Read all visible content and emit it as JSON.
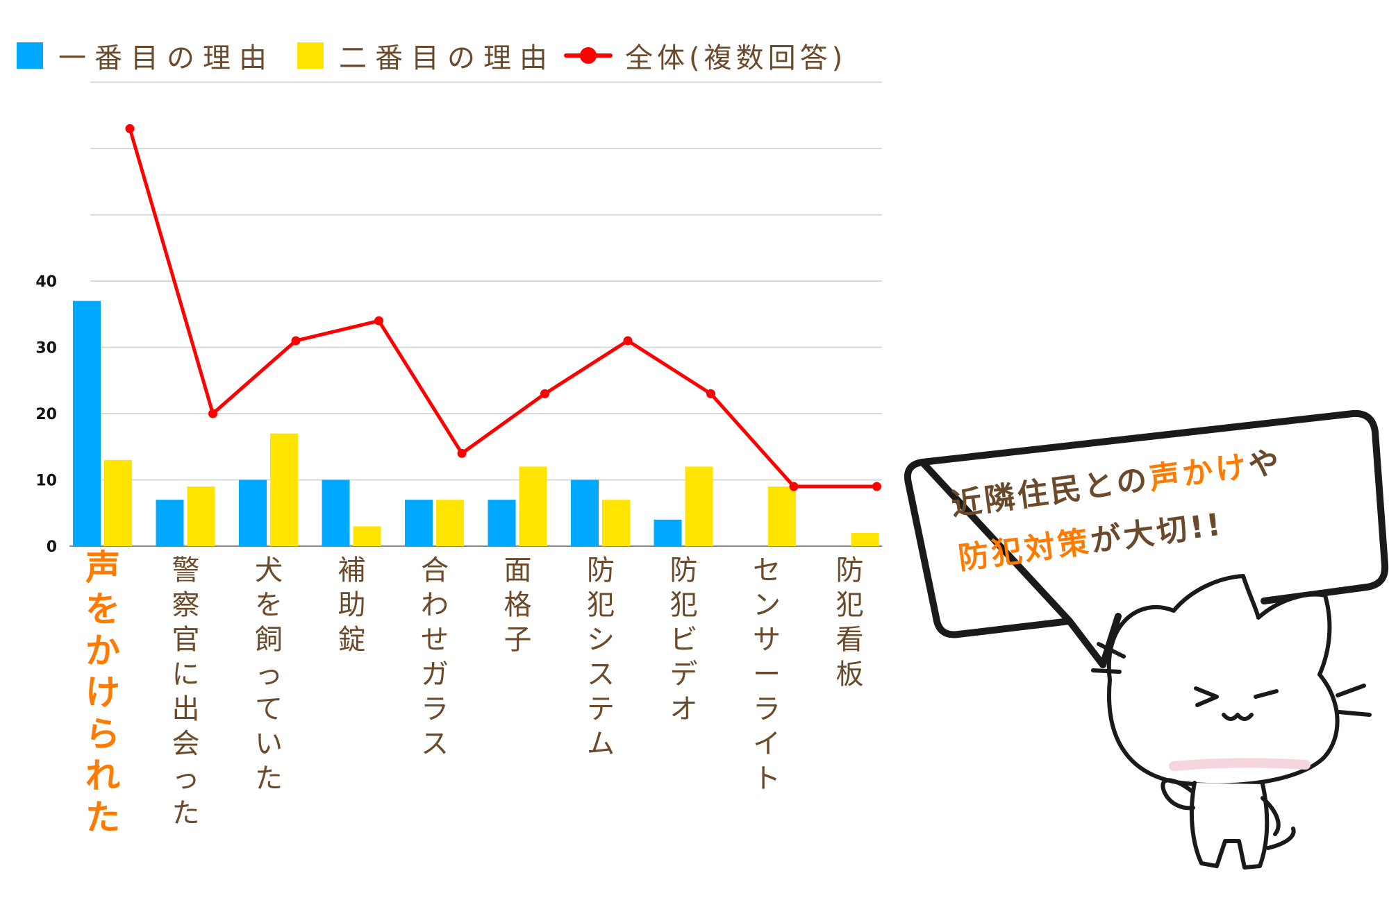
{
  "chart_data": {
    "type": "bar",
    "categories": [
      "声をかけられた",
      "警察官に出会った",
      "犬を飼っていた",
      "補助錠",
      "合わせガラス",
      "面格子",
      "防犯システム",
      "防犯ビデオ",
      "センサーライト",
      "防犯看板"
    ],
    "series": [
      {
        "name": "一番目の理由",
        "type": "bar",
        "color": "#00a8ff",
        "values": [
          37,
          7,
          10,
          10,
          7,
          7,
          10,
          4,
          0,
          0
        ]
      },
      {
        "name": "二番目の理由",
        "type": "bar",
        "color": "#ffe400",
        "values": [
          13,
          9,
          17,
          3,
          7,
          12,
          7,
          12,
          9,
          2
        ]
      },
      {
        "name": "全体(複数回答)",
        "type": "line",
        "color": "#ff0000",
        "values": [
          63,
          20,
          31,
          34,
          14,
          23,
          31,
          23,
          9,
          9
        ]
      }
    ],
    "yticks": [
      0,
      10,
      20,
      30,
      40
    ],
    "ylim": [
      0,
      70
    ],
    "grid": true,
    "legend": "top",
    "highlight_category": "声をかけられた",
    "highlight_color": "#ff7a00",
    "label_color": "#6b4a2b"
  },
  "callout": {
    "line1_a": "近隣住民との",
    "line1_b": "声かけ",
    "line1_c": "や",
    "line2_a": "防犯対策",
    "line2_b": "が大切!!",
    "text_color": "#6b4a2b",
    "accent_color": "#ff7a00"
  }
}
